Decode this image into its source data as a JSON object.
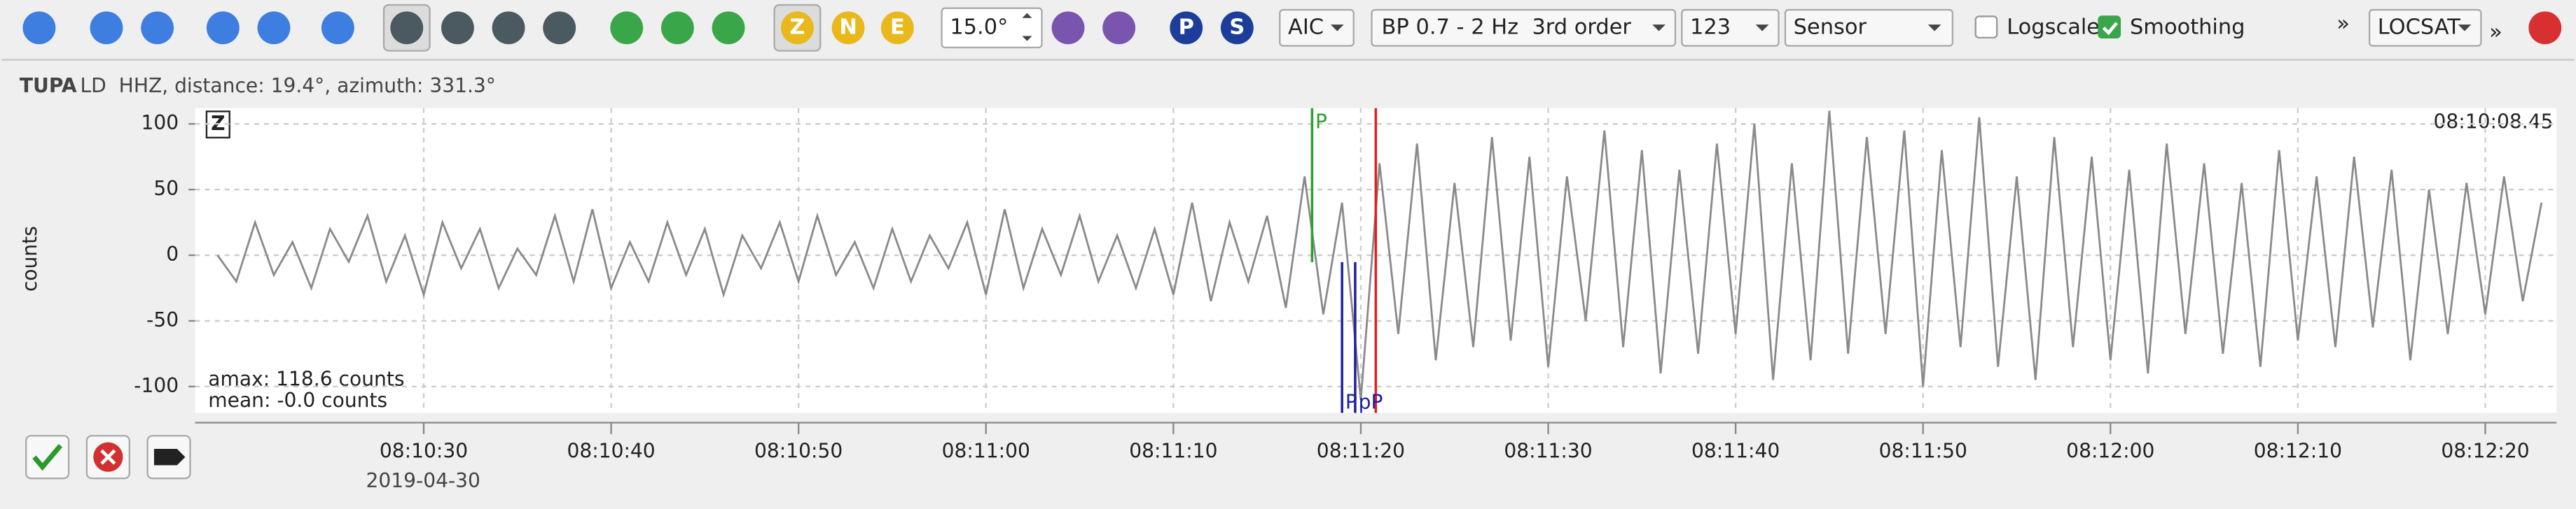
{
  "toolbar": {
    "spin": "15.0°",
    "z": "Z",
    "n": "N",
    "e": "E",
    "p": "P",
    "s": "S",
    "method": "AIC",
    "filter": "BP 0.7 - 2 Hz  3rd order",
    "rotation": "123",
    "unit": "Sensor",
    "logscale": "Logscale",
    "logscale_checked": false,
    "smoothing": "Smoothing",
    "smoothing_checked": true,
    "more": "»",
    "locator": "LOCSAT",
    "more2": "»"
  },
  "trace_header": {
    "station": "TUPA",
    "details": "LD  HHZ, distance: 19.4°, azimuth: 331.3°"
  },
  "chart_data": {
    "type": "line",
    "ylabel": "counts",
    "component": "Z",
    "time_label": "08:10:08.45",
    "amax": "amax: 118.6 counts",
    "mean": "mean: -0.0 counts",
    "date": "2019-04-30",
    "x": [
      29419,
      29420,
      29421,
      29422,
      29423,
      29424,
      29425,
      29426,
      29427,
      29428,
      29429,
      29430,
      29431,
      29432,
      29433,
      29434,
      29435,
      29436,
      29437,
      29438,
      29439,
      29440,
      29441,
      29442,
      29443,
      29444,
      29445,
      29446,
      29447,
      29448,
      29449,
      29450,
      29451,
      29452,
      29453,
      29454,
      29455,
      29456,
      29457,
      29458,
      29459,
      29460,
      29461,
      29462,
      29463,
      29464,
      29465,
      29466,
      29467,
      29468,
      29469,
      29470,
      29471,
      29472,
      29473,
      29474,
      29475,
      29476,
      29477,
      29478,
      29479,
      29480,
      29481,
      29482,
      29483,
      29484,
      29485,
      29486,
      29487,
      29488,
      29489,
      29490,
      29491,
      29492,
      29493,
      29494,
      29495,
      29496,
      29497,
      29498,
      29499,
      29500,
      29501,
      29502,
      29503,
      29504,
      29505,
      29506,
      29507,
      29508,
      29509,
      29510,
      29511,
      29512,
      29513,
      29514,
      29515,
      29516,
      29517,
      29518,
      29519,
      29520,
      29521,
      29522,
      29523,
      29524,
      29525,
      29526,
      29527,
      29528,
      29529,
      29530,
      29531,
      29532,
      29533,
      29534,
      29535,
      29536,
      29537,
      29538,
      29539,
      29540,
      29541,
      29542,
      29543
    ],
    "series": [
      {
        "color": "#8a8a8a",
        "values": [
          0,
          -20,
          25,
          -15,
          10,
          -25,
          20,
          -5,
          30,
          -20,
          15,
          -30,
          25,
          -10,
          20,
          -25,
          5,
          -15,
          30,
          -20,
          35,
          -25,
          10,
          -20,
          25,
          -15,
          20,
          -30,
          15,
          -10,
          25,
          -20,
          30,
          -15,
          10,
          -25,
          20,
          -20,
          15,
          -10,
          25,
          -30,
          35,
          -25,
          20,
          -15,
          30,
          -20,
          15,
          -25,
          20,
          -30,
          40,
          -35,
          25,
          -20,
          30,
          -40,
          60,
          -45,
          40,
          -110,
          70,
          -60,
          85,
          -80,
          55,
          -70,
          90,
          -65,
          75,
          -85,
          60,
          -50,
          95,
          -70,
          80,
          -90,
          65,
          -75,
          85,
          -60,
          100,
          -95,
          70,
          -80,
          110,
          -75,
          90,
          -60,
          95,
          -100,
          80,
          -70,
          105,
          -85,
          60,
          -95,
          90,
          -70,
          75,
          -80,
          65,
          -90,
          85,
          -60,
          70,
          -75,
          55,
          -85,
          80,
          -65,
          60,
          -70,
          75,
          -55,
          65,
          -80,
          50,
          -60,
          55,
          -45,
          60,
          -35,
          40
        ]
      }
    ],
    "xlim": [
      29417.8,
      29543.8
    ],
    "xticks": [
      {
        "value": 29430,
        "label": "08:10:30"
      },
      {
        "value": 29440,
        "label": "08:10:40"
      },
      {
        "value": 29450,
        "label": "08:10:50"
      },
      {
        "value": 29460,
        "label": "08:11:00"
      },
      {
        "value": 29470,
        "label": "08:11:10"
      },
      {
        "value": 29480,
        "label": "08:11:20"
      },
      {
        "value": 29490,
        "label": "08:11:30"
      },
      {
        "value": 29500,
        "label": "08:11:40"
      },
      {
        "value": 29510,
        "label": "08:11:50"
      },
      {
        "value": 29520,
        "label": "08:12:00"
      },
      {
        "value": 29530,
        "label": "08:12:10"
      },
      {
        "value": 29540,
        "label": "08:12:20"
      }
    ],
    "ylim": [
      -120,
      112
    ],
    "yticks": [
      -100,
      -50,
      0,
      50,
      100
    ],
    "grid": true,
    "picks": [
      {
        "label": "P",
        "time": 29477.4,
        "color": "#2ca02c"
      },
      {
        "label": "P",
        "time": 29479.0,
        "color": "#2020a0"
      },
      {
        "label": "pP",
        "time": 29479.7,
        "color": "#2020a0"
      }
    ],
    "markers": [
      {
        "time": 29480.8,
        "color": "#e02020"
      }
    ]
  }
}
